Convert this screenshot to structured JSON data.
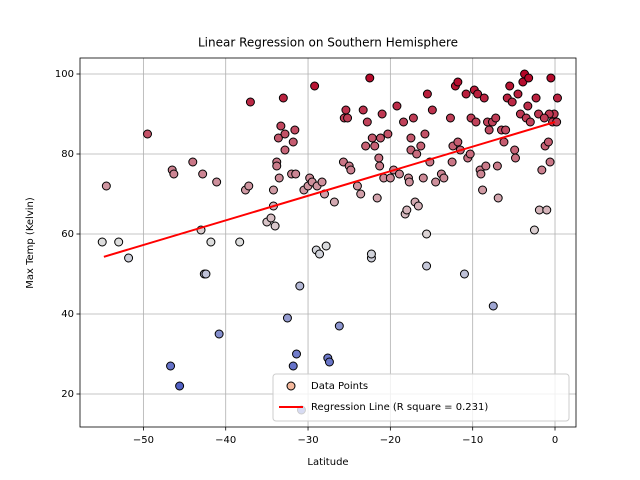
{
  "chart_data": {
    "type": "scatter",
    "title": "Linear Regression on Southern Hemisphere",
    "x_label": "Latitude",
    "y_label": "Max Temp (Kelvin)",
    "xlim": [
      -57.7,
      2.55
    ],
    "ylim": [
      11.75,
      104
    ],
    "xticks": [
      {
        "value": -50,
        "label": "−50"
      },
      {
        "value": -40,
        "label": "−40"
      },
      {
        "value": -30,
        "label": "−30"
      },
      {
        "value": -20,
        "label": "−20"
      },
      {
        "value": -10,
        "label": "−10"
      },
      0
    ],
    "yticks": [
      20,
      40,
      60,
      80,
      100
    ],
    "grid": true,
    "legend": "lower right",
    "series": [
      {
        "name": "Data Points",
        "type": "scatter",
        "color": "#f4b89c",
        "colormap": [
          "#3b4cc0",
          "#dddddd",
          "#b40426"
        ],
        "x": [
          -54.5,
          -55,
          -53,
          -51.8,
          -49.5,
          -46.7,
          -46.5,
          -46.3,
          -45.6,
          -44,
          -43,
          -42.8,
          -42.6,
          -42.4,
          -41.8,
          -41.1,
          -40.8,
          -38.3,
          -37.6,
          -37.2,
          -37,
          -35,
          -34.5,
          -34.2,
          -34.2,
          -34,
          -33.8,
          -33.8,
          -33.6,
          -33.5,
          -33.3,
          -33,
          -32.8,
          -32.8,
          -32.5,
          -32,
          -31.8,
          -31.8,
          -31.6,
          -31.5,
          -31.4,
          -31,
          -30.8,
          -30.5,
          -30,
          -29.8,
          -29.5,
          -29.2,
          -29,
          -28.9,
          -28.6,
          -28.3,
          -28,
          -27.8,
          -27.6,
          -27.4,
          -26.8,
          -26.2,
          -25.7,
          -25.6,
          -25.4,
          -25.2,
          -25,
          -24.8,
          -24,
          -23.6,
          -23.3,
          -23,
          -22.8,
          -22.5,
          -22.3,
          -22.3,
          -22.2,
          -21.9,
          -21.6,
          -21.4,
          -21.3,
          -21.2,
          -21,
          -20.8,
          -20.3,
          -20,
          -19.6,
          -19.2,
          -18.9,
          -18.4,
          -18.2,
          -18,
          -17.8,
          -17.7,
          -17.5,
          -17.5,
          -17.2,
          -17,
          -16.8,
          -16.6,
          -16.3,
          -16,
          -15.8,
          -15.6,
          -15.6,
          -15.5,
          -15.2,
          -14.9,
          -14.5,
          -13.8,
          -13.5,
          -12.7,
          -12.5,
          -12.4,
          -12.1,
          -11.8,
          -11.5,
          -11,
          -10.8,
          -10.6,
          -10.3,
          -10.2,
          -9.8,
          -9.6,
          -9.4,
          -9.1,
          -9,
          -8.8,
          -8.6,
          -8.4,
          -8.2,
          -8,
          -7.6,
          -7.5,
          -7.2,
          -7,
          -6.9,
          -6.5,
          -6.2,
          -6,
          -5.8,
          -5.5,
          -5.2,
          -4.9,
          -4.8,
          -4.5,
          -4.2,
          -3.9,
          -3.7,
          -3.5,
          -3.3,
          -3.2,
          -3,
          -2.5,
          -2.3,
          -2,
          -1.9,
          -1.6,
          -1.2,
          -1,
          -0.8,
          -0.6,
          -0.5,
          -0.3,
          -0.1,
          0.2,
          0.3,
          -0.7,
          -1.3,
          -11.8
        ],
        "values": [
          72,
          58,
          58,
          54,
          85,
          27,
          76,
          75,
          22,
          78,
          61,
          75,
          50,
          50,
          58,
          73,
          35,
          58,
          71,
          72,
          93,
          63,
          64,
          71,
          67,
          62,
          78,
          77,
          84,
          74,
          87,
          94,
          85,
          81,
          39,
          75,
          27,
          83,
          86,
          75,
          30,
          47,
          16,
          71,
          72,
          74,
          73,
          97,
          56,
          72,
          55,
          73,
          70,
          57,
          29,
          28,
          68,
          37,
          78,
          89,
          91,
          89,
          77,
          76,
          72,
          70,
          91,
          82,
          88,
          99,
          54,
          55,
          84,
          82,
          69,
          79,
          77,
          84,
          90,
          74,
          85,
          74,
          76,
          92,
          75,
          88,
          65,
          66,
          74,
          73,
          84,
          81,
          89,
          68,
          80,
          67,
          82,
          74,
          85,
          52,
          60,
          95,
          78,
          91,
          73,
          75,
          74,
          89,
          78,
          82,
          97,
          98,
          81,
          50,
          95,
          79,
          80,
          89,
          96,
          88,
          95,
          76,
          75,
          71,
          94,
          77,
          88,
          86,
          88,
          42,
          89,
          77,
          69,
          86,
          83,
          86,
          94,
          97,
          93,
          81,
          79,
          95,
          90,
          98,
          100,
          89,
          92,
          99,
          88,
          61,
          94,
          90,
          66,
          76,
          82,
          66,
          83,
          78,
          99,
          88,
          90,
          88,
          94,
          90,
          89,
          83
        ]
      },
      {
        "name": "Regression Line (R square = 0.231)",
        "type": "line",
        "color": "#ff0000",
        "x": [
          -54.8,
          0
        ],
        "values": [
          54.3,
          88
        ]
      }
    ]
  }
}
